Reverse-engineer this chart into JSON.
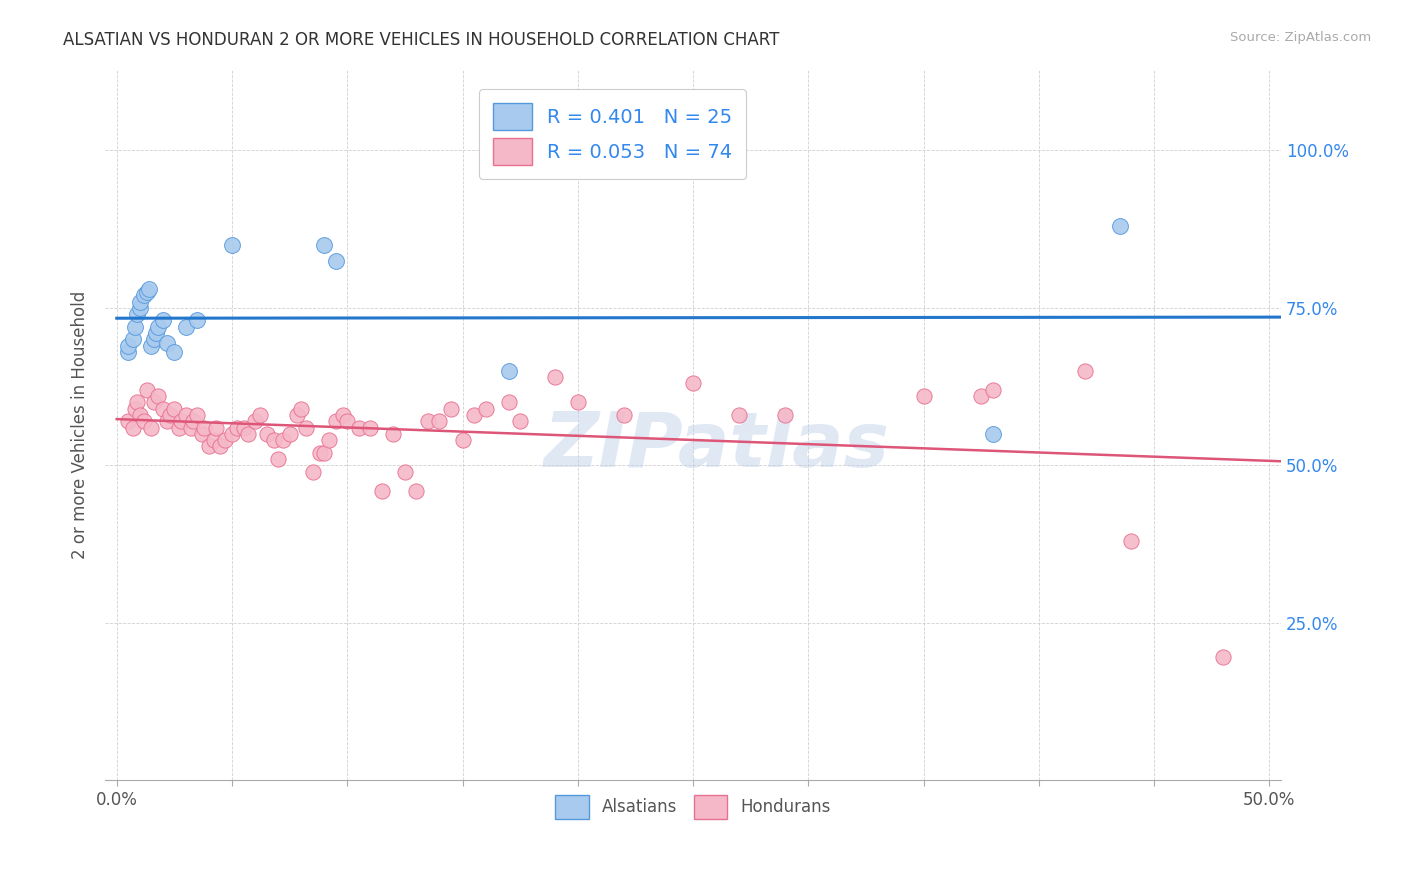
{
  "title": "ALSATIAN VS HONDURAN 2 OR MORE VEHICLES IN HOUSEHOLD CORRELATION CHART",
  "source": "Source: ZipAtlas.com",
  "ylabel": "2 or more Vehicles in Household",
  "x_tick_vals": [
    0.0,
    0.05,
    0.1,
    0.15,
    0.2,
    0.25,
    0.3,
    0.35,
    0.4,
    0.45,
    0.5
  ],
  "x_label_vals": [
    0.0,
    0.5
  ],
  "x_labels": [
    "0.0%",
    "50.0%"
  ],
  "y_tick_vals": [
    0.0,
    0.25,
    0.5,
    0.75,
    1.0
  ],
  "y_right_labels": [
    "",
    "25.0%",
    "50.0%",
    "75.0%",
    "100.0%"
  ],
  "xlim": [
    -0.005,
    0.505
  ],
  "ylim": [
    0.0,
    1.13
  ],
  "legend_R_alsatian": "R = 0.401",
  "legend_N_alsatian": "N = 25",
  "legend_R_honduran": "R = 0.053",
  "legend_N_honduran": "N = 74",
  "alsatian_fill": "#A8CAEE",
  "honduran_fill": "#F5B8C8",
  "alsatian_edge": "#5599DD",
  "honduran_edge": "#E87090",
  "alsatian_line_color": "#2277CC",
  "honduran_line_color": "#DD5577",
  "watermark": "ZIPatlas",
  "legend_text_color": "#3388EE",
  "right_axis_color": "#3388EE",
  "alsatian_x": [
    0.005,
    0.005,
    0.007,
    0.008,
    0.009,
    0.01,
    0.01,
    0.012,
    0.013,
    0.014,
    0.015,
    0.016,
    0.017,
    0.018,
    0.02,
    0.022,
    0.025,
    0.03,
    0.035,
    0.05,
    0.09,
    0.095,
    0.17,
    0.38,
    0.435
  ],
  "alsatian_y": [
    0.68,
    0.69,
    0.7,
    0.72,
    0.74,
    0.75,
    0.76,
    0.77,
    0.775,
    0.78,
    0.69,
    0.7,
    0.71,
    0.72,
    0.73,
    0.695,
    0.68,
    0.72,
    0.73,
    0.85,
    0.85,
    0.825,
    0.65,
    0.55,
    0.88
  ],
  "honduran_x": [
    0.005,
    0.007,
    0.008,
    0.009,
    0.01,
    0.012,
    0.013,
    0.015,
    0.016,
    0.018,
    0.02,
    0.022,
    0.023,
    0.025,
    0.027,
    0.028,
    0.03,
    0.032,
    0.033,
    0.035,
    0.037,
    0.038,
    0.04,
    0.042,
    0.043,
    0.045,
    0.047,
    0.05,
    0.052,
    0.055,
    0.057,
    0.06,
    0.062,
    0.065,
    0.068,
    0.07,
    0.072,
    0.075,
    0.078,
    0.08,
    0.082,
    0.085,
    0.088,
    0.09,
    0.092,
    0.095,
    0.098,
    0.1,
    0.105,
    0.11,
    0.115,
    0.12,
    0.125,
    0.13,
    0.135,
    0.14,
    0.145,
    0.15,
    0.155,
    0.16,
    0.17,
    0.175,
    0.19,
    0.2,
    0.22,
    0.25,
    0.27,
    0.29,
    0.35,
    0.375,
    0.38,
    0.42,
    0.44,
    0.48
  ],
  "honduran_y": [
    0.57,
    0.56,
    0.59,
    0.6,
    0.58,
    0.57,
    0.62,
    0.56,
    0.6,
    0.61,
    0.59,
    0.57,
    0.58,
    0.59,
    0.56,
    0.57,
    0.58,
    0.56,
    0.57,
    0.58,
    0.55,
    0.56,
    0.53,
    0.54,
    0.56,
    0.53,
    0.54,
    0.55,
    0.56,
    0.56,
    0.55,
    0.57,
    0.58,
    0.55,
    0.54,
    0.51,
    0.54,
    0.55,
    0.58,
    0.59,
    0.56,
    0.49,
    0.52,
    0.52,
    0.54,
    0.57,
    0.58,
    0.57,
    0.56,
    0.56,
    0.46,
    0.55,
    0.49,
    0.46,
    0.57,
    0.57,
    0.59,
    0.54,
    0.58,
    0.59,
    0.6,
    0.57,
    0.64,
    0.6,
    0.58,
    0.63,
    0.58,
    0.58,
    0.61,
    0.61,
    0.62,
    0.65,
    0.38,
    0.195
  ]
}
